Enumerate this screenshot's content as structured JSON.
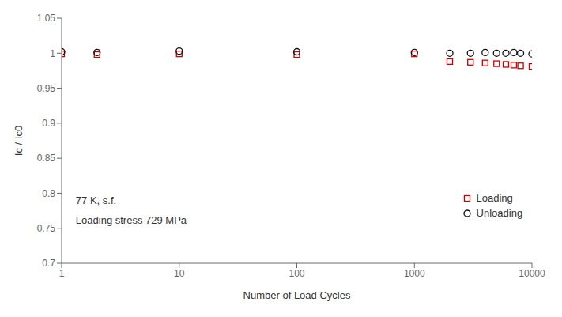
{
  "chart_data": {
    "type": "scatter",
    "xlabel": "Number of Load Cycles",
    "ylabel": "Ic / Ic0",
    "annotations": [
      "77 K, s.f.",
      "Loading stress 729 MPa"
    ],
    "log": "x",
    "xlim": [
      1,
      10000
    ],
    "xticks": [
      1,
      10,
      100,
      1000,
      10000
    ],
    "ylim": [
      0.7,
      1.05
    ],
    "yticks": [
      0.7,
      0.75,
      0.8,
      0.85,
      0.9,
      0.95,
      1,
      1.05
    ],
    "grid": false,
    "legend": "lower right",
    "x": [
      1,
      2,
      10,
      100,
      1000,
      2000,
      3000,
      4000,
      5000,
      6000,
      7000,
      8000,
      10000
    ],
    "series": [
      {
        "name": "Loading",
        "color": "#cc0000",
        "marker": "square",
        "values": [
          0.999,
          0.998,
          0.999,
          0.998,
          0.999,
          0.988,
          0.987,
          0.986,
          0.985,
          0.984,
          0.983,
          0.982,
          0.981
        ]
      },
      {
        "name": "Unloading",
        "color": "#111111",
        "marker": "circle",
        "values": [
          1.002,
          1.001,
          1.003,
          1.002,
          1.001,
          1.0,
          1.0,
          1.001,
          1.0,
          1.0,
          1.001,
          1.0,
          0.999
        ]
      }
    ]
  }
}
